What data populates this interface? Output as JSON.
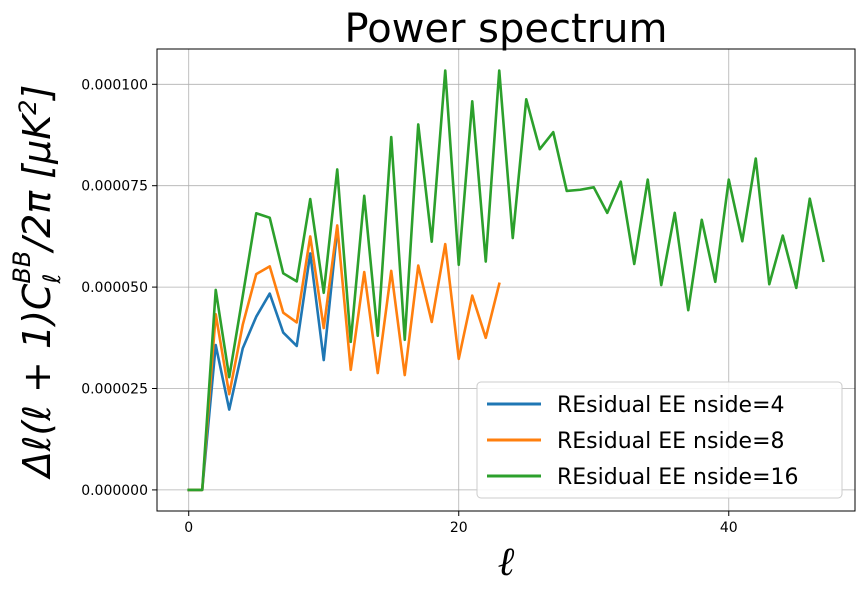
{
  "chart_data": {
    "type": "line",
    "title": "Power spectrum",
    "xlabel": "ℓ",
    "ylabel": "Δℓ(ℓ + 1)C_ℓ^BB/2π [μK²]",
    "xlim": [
      -2.35,
      49.35
    ],
    "ylim": [
      -5.2e-06,
      0.0001087
    ],
    "xticks": [
      0,
      20,
      40
    ],
    "yticks": [
      0,
      2.5e-05,
      5e-05,
      7.5e-05,
      0.0001
    ],
    "ytick_labels": [
      "0.000000",
      "0.000025",
      "0.000050",
      "0.000075",
      "0.000100"
    ],
    "grid": true,
    "legend_position": "lower-right",
    "series": [
      {
        "name": "REsidual EE nside=4",
        "color": "#1f77b4",
        "x": [
          0,
          1,
          2,
          3,
          4,
          5,
          6,
          7,
          8,
          9,
          10,
          11
        ],
        "values": [
          0.0,
          0.0,
          3.57e-05,
          1.98e-05,
          3.49e-05,
          4.27e-05,
          4.84e-05,
          3.88e-05,
          3.55e-05,
          5.83e-05,
          3.2e-05,
          6.42e-05
        ]
      },
      {
        "name": "REsidual EE nside=8",
        "color": "#ff7f0e",
        "x": [
          0,
          1,
          2,
          3,
          4,
          5,
          6,
          7,
          8,
          9,
          10,
          11,
          12,
          13,
          14,
          15,
          16,
          17,
          18,
          19,
          20,
          21,
          22,
          23
        ],
        "values": [
          0.0,
          0.0,
          4.33e-05,
          2.36e-05,
          4.07e-05,
          5.32e-05,
          5.51e-05,
          4.37e-05,
          4.13e-05,
          6.25e-05,
          3.99e-05,
          6.52e-05,
          2.96e-05,
          5.37e-05,
          2.88e-05,
          5.4e-05,
          2.83e-05,
          5.53e-05,
          4.14e-05,
          6.06e-05,
          3.23e-05,
          4.79e-05,
          3.75e-05,
          5.08e-05
        ]
      },
      {
        "name": "REsidual EE nside=16",
        "color": "#2ca02c",
        "x": [
          0,
          1,
          2,
          3,
          4,
          5,
          6,
          7,
          8,
          9,
          10,
          11,
          12,
          13,
          14,
          15,
          16,
          17,
          18,
          19,
          20,
          21,
          22,
          23,
          24,
          25,
          26,
          27,
          28,
          29,
          30,
          31,
          32,
          33,
          34,
          35,
          36,
          37,
          38,
          39,
          40,
          41,
          42,
          43,
          44,
          45,
          46,
          47
        ],
        "values": [
          0.0,
          0.0,
          4.93e-05,
          2.78e-05,
          4.78e-05,
          6.82e-05,
          6.71e-05,
          5.34e-05,
          5.14e-05,
          7.17e-05,
          4.86e-05,
          7.9e-05,
          3.65e-05,
          7.25e-05,
          3.8e-05,
          8.7e-05,
          3.7e-05,
          9.01e-05,
          6.12e-05,
          0.0001034,
          5.55e-05,
          9.58e-05,
          5.63e-05,
          0.0001034,
          6.21e-05,
          9.63e-05,
          8.4e-05,
          8.82e-05,
          7.37e-05,
          7.4e-05,
          7.46e-05,
          6.83e-05,
          7.6e-05,
          5.57e-05,
          7.65e-05,
          5.05e-05,
          6.83e-05,
          4.43e-05,
          6.66e-05,
          5.13e-05,
          7.65e-05,
          6.13e-05,
          8.17e-05,
          5.07e-05,
          6.27e-05,
          4.98e-05,
          7.18e-05,
          5.65e-05
        ]
      }
    ]
  }
}
